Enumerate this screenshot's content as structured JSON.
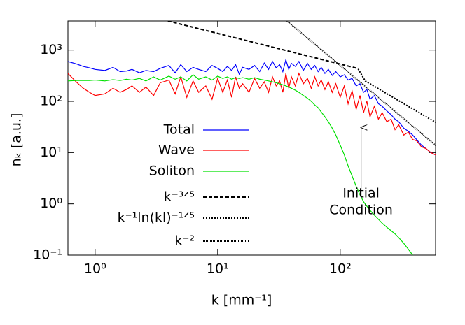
{
  "chart_data": {
    "type": "line",
    "x_label": "k [mm⁻¹]",
    "y_label": "nₖ [a.u.]",
    "log_x": true,
    "log_y": true,
    "xlim": [
      0.6,
      600
    ],
    "ylim": [
      0.1,
      3700
    ],
    "xticks": [
      {
        "value": 1,
        "label": "10⁰"
      },
      {
        "value": 10,
        "label": "10¹"
      },
      {
        "value": 100,
        "label": "10²"
      }
    ],
    "yticks": [
      {
        "value": 0.1,
        "label": "10⁻¹"
      },
      {
        "value": 1,
        "label": "10⁰"
      },
      {
        "value": 10,
        "label": "10¹"
      },
      {
        "value": 100,
        "label": "10²"
      },
      {
        "value": 1000,
        "label": "10³"
      }
    ],
    "legend": "left",
    "x": [
      0.6,
      0.7,
      0.8,
      0.9,
      1,
      1.2,
      1.4,
      1.6,
      1.8,
      2,
      2.3,
      2.6,
      3,
      3.4,
      4,
      4.5,
      5,
      5.6,
      6.3,
      7,
      8,
      9,
      10,
      11,
      12,
      13,
      14,
      15,
      16,
      18,
      20,
      22,
      24,
      26,
      28,
      30,
      32,
      34,
      36,
      38,
      40,
      43,
      46,
      50,
      54,
      58,
      62,
      66,
      70,
      75,
      80,
      86,
      92,
      100,
      108,
      116,
      125,
      135,
      145,
      155,
      165,
      175,
      190,
      205,
      220,
      240,
      260,
      280,
      300,
      330,
      360,
      390,
      420,
      460,
      500,
      550,
      600
    ],
    "series": [
      {
        "name": "Total",
        "color": "#0000ff",
        "dash": "solid",
        "values": [
          600,
          540,
          480,
          450,
          420,
          400,
          460,
          380,
          390,
          420,
          360,
          400,
          380,
          440,
          500,
          360,
          520,
          380,
          460,
          420,
          380,
          500,
          440,
          380,
          480,
          400,
          520,
          340,
          460,
          420,
          500,
          380,
          560,
          420,
          600,
          450,
          520,
          380,
          650,
          420,
          550,
          480,
          600,
          400,
          550,
          420,
          500,
          380,
          460,
          350,
          420,
          320,
          380,
          300,
          330,
          260,
          280,
          200,
          220,
          150,
          170,
          110,
          130,
          90,
          80,
          65,
          55,
          45,
          40,
          30,
          26,
          22,
          18,
          14,
          12,
          10,
          9
        ]
      },
      {
        "name": "Wave",
        "color": "#ff0000",
        "dash": "solid",
        "values": [
          350,
          240,
          180,
          150,
          130,
          140,
          180,
          150,
          170,
          200,
          150,
          190,
          130,
          230,
          260,
          140,
          300,
          120,
          250,
          150,
          200,
          110,
          280,
          150,
          260,
          120,
          300,
          180,
          220,
          150,
          280,
          180,
          240,
          150,
          300,
          200,
          250,
          150,
          350,
          180,
          300,
          200,
          350,
          220,
          280,
          180,
          300,
          200,
          260,
          170,
          240,
          150,
          220,
          120,
          200,
          90,
          160,
          70,
          130,
          60,
          100,
          50,
          80,
          45,
          60,
          40,
          45,
          28,
          35,
          22,
          25,
          18,
          17,
          13,
          12,
          10,
          9
        ]
      },
      {
        "name": "Soliton",
        "color": "#00e000",
        "dash": "solid",
        "values": [
          250,
          255,
          255,
          255,
          260,
          250,
          265,
          255,
          270,
          260,
          280,
          250,
          300,
          260,
          310,
          270,
          300,
          250,
          330,
          270,
          300,
          260,
          310,
          280,
          300,
          270,
          290,
          280,
          290,
          270,
          290,
          270,
          260,
          250,
          240,
          230,
          220,
          210,
          200,
          190,
          180,
          165,
          150,
          130,
          115,
          100,
          85,
          75,
          62,
          50,
          40,
          30,
          22,
          14,
          9,
          5.5,
          3.5,
          2.2,
          1.5,
          1.1,
          0.9,
          0.75,
          0.6,
          0.5,
          0.42,
          0.35,
          0.3,
          0.26,
          0.22,
          0.17,
          0.13,
          0.1,
          null,
          null,
          null,
          null,
          null
        ]
      },
      {
        "name": "k⁻³ᐟ⁵",
        "color": "#000000",
        "dash": "dashed",
        "x": [
          3.93,
          137
        ],
        "values": [
          3700,
          442
        ]
      },
      {
        "name": "k⁻¹ln(kl)⁻¹ᐟ⁵",
        "color": "#000000",
        "dash": "dotted",
        "x": [
          140,
          160,
          250,
          400,
          600
        ],
        "values": [
          430,
          250,
          133,
          69,
          39
        ]
      },
      {
        "name": "k⁻²",
        "color": "#000000",
        "dash": "dense-dotted",
        "x": [
          36.8,
          600
        ],
        "values": [
          3700,
          13.9
        ]
      }
    ],
    "annotation": {
      "lines": [
        "Initial",
        "Condition"
      ],
      "x": 148,
      "y_from": 1.4,
      "y_to": 31
    }
  }
}
